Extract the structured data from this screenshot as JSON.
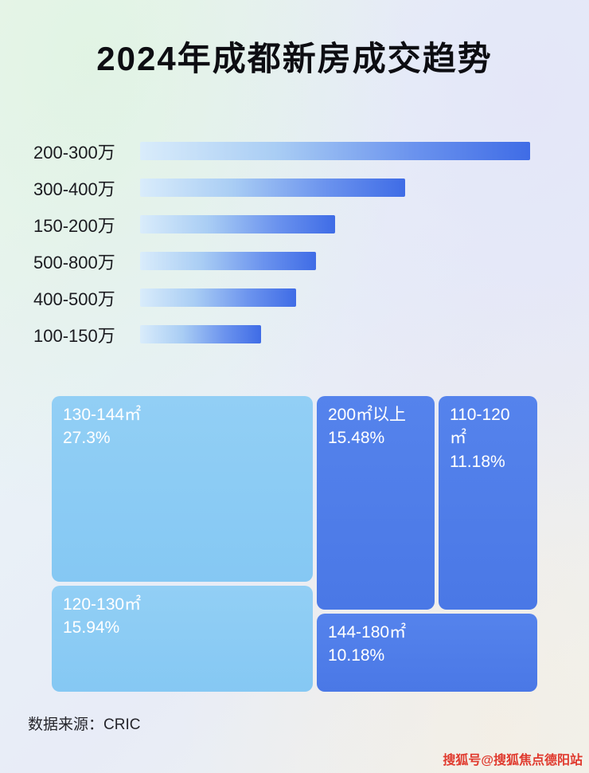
{
  "page": {
    "title": "2024年成都新房成交趋势",
    "source_label": "数据来源：CRIC",
    "watermark": "搜狐号@搜狐焦点德阳站"
  },
  "colors": {
    "bar_gradient_start": "#d9ecfb",
    "bar_gradient_end": "#3f6ce6",
    "treemap_light_block": "#8accf4",
    "treemap_medium_block": "#4e7ee9",
    "watermark_red": "#e03a2e",
    "text_dark": "#1a1a1f"
  },
  "chart_data": [
    {
      "type": "bar",
      "orientation": "horizontal",
      "title": "2024年成都新房成交趋势",
      "categories": [
        "200-300万",
        "300-400万",
        "150-200万",
        "500-800万",
        "400-500万",
        "100-150万"
      ],
      "values": [
        100,
        68,
        50,
        45,
        40,
        31
      ],
      "value_note": "relative bar lengths estimated in percent of longest bar; no numeric axis shown",
      "xlabel": "",
      "ylabel": "",
      "grid": false,
      "legend": false
    },
    {
      "type": "treemap",
      "title": "",
      "items": [
        {
          "label": "130-144㎡",
          "value": 27.3,
          "value_label": "27.3%",
          "tone": "light"
        },
        {
          "label": "200㎡以上",
          "value": 15.48,
          "value_label": "15.48%",
          "tone": "medium"
        },
        {
          "label": "110-120㎡",
          "value": 11.18,
          "value_label": "11.18%",
          "tone": "medium"
        },
        {
          "label": "120-130㎡",
          "value": 15.94,
          "value_label": "15.94%",
          "tone": "light"
        },
        {
          "label": "144-180㎡",
          "value": 10.18,
          "value_label": "10.18%",
          "tone": "medium"
        }
      ]
    }
  ]
}
